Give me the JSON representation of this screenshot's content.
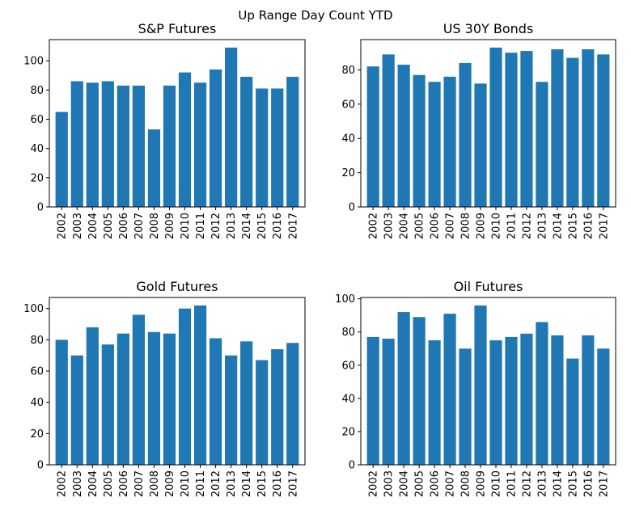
{
  "figure": {
    "title": "Up Range Day Count YTD"
  },
  "chart_data": [
    {
      "type": "bar",
      "title": "S&P Futures",
      "xlabel": "",
      "ylabel": "",
      "categories": [
        "2002",
        "2003",
        "2004",
        "2005",
        "2006",
        "2007",
        "2008",
        "2009",
        "2010",
        "2011",
        "2012",
        "2013",
        "2014",
        "2015",
        "2016",
        "2017"
      ],
      "values": [
        65,
        86,
        85,
        86,
        83,
        83,
        53,
        83,
        92,
        85,
        94,
        109,
        89,
        81,
        81,
        89
      ],
      "ylim": [
        0,
        114.45
      ],
      "yticks": [
        0,
        20,
        40,
        60,
        80,
        100
      ],
      "color": "#1f77b4",
      "grid": false
    },
    {
      "type": "bar",
      "title": "US 30Y Bonds",
      "xlabel": "",
      "ylabel": "",
      "categories": [
        "2002",
        "2003",
        "2004",
        "2005",
        "2006",
        "2007",
        "2008",
        "2009",
        "2010",
        "2011",
        "2012",
        "2013",
        "2014",
        "2015",
        "2016",
        "2017"
      ],
      "values": [
        82,
        89,
        83,
        77,
        73,
        76,
        84,
        72,
        93,
        90,
        91,
        73,
        92,
        87,
        92,
        89
      ],
      "ylim": [
        0,
        97.65
      ],
      "yticks": [
        0,
        20,
        40,
        60,
        80
      ],
      "color": "#1f77b4",
      "grid": false
    },
    {
      "type": "bar",
      "title": "Gold Futures",
      "xlabel": "",
      "ylabel": "",
      "categories": [
        "2002",
        "2003",
        "2004",
        "2005",
        "2006",
        "2007",
        "2008",
        "2009",
        "2010",
        "2011",
        "2012",
        "2013",
        "2014",
        "2015",
        "2016",
        "2017"
      ],
      "values": [
        80,
        70,
        88,
        77,
        84,
        96,
        85,
        84,
        100,
        102,
        81,
        70,
        79,
        67,
        74,
        78
      ],
      "ylim": [
        0,
        107.1
      ],
      "yticks": [
        0,
        20,
        40,
        60,
        80,
        100
      ],
      "color": "#1f77b4",
      "grid": false
    },
    {
      "type": "bar",
      "title": "Oil Futures",
      "xlabel": "",
      "ylabel": "",
      "categories": [
        "2002",
        "2003",
        "2004",
        "2005",
        "2006",
        "2007",
        "2008",
        "2009",
        "2010",
        "2011",
        "2012",
        "2013",
        "2014",
        "2015",
        "2016",
        "2017"
      ],
      "values": [
        77,
        76,
        92,
        89,
        75,
        91,
        70,
        96,
        75,
        77,
        79,
        86,
        78,
        64,
        78,
        70
      ],
      "ylim": [
        0,
        100.8
      ],
      "yticks": [
        0,
        20,
        40,
        60,
        80,
        100
      ],
      "color": "#1f77b4",
      "grid": false
    }
  ]
}
